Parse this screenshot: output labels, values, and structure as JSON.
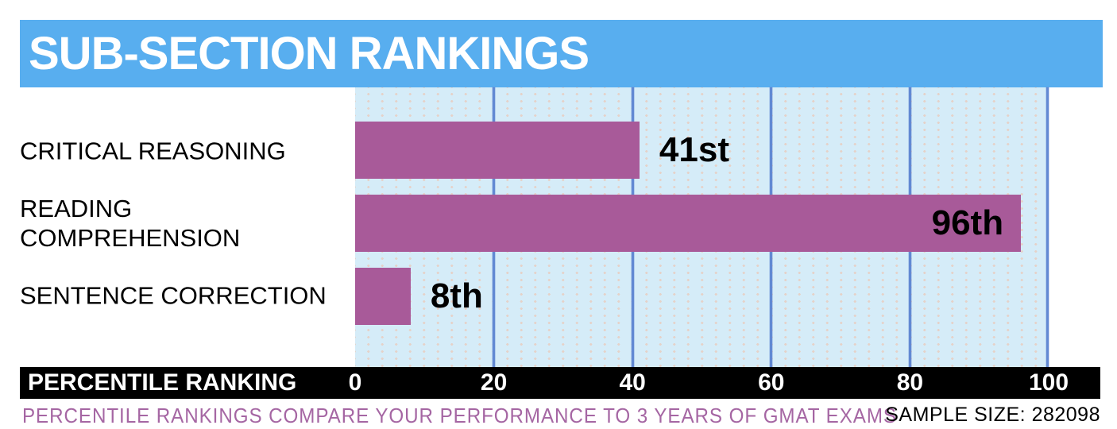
{
  "header": {
    "title": "SUB-SECTION RANKINGS",
    "background_color": "#58aeef"
  },
  "chart_data": {
    "type": "bar",
    "orientation": "horizontal",
    "title": "SUB-SECTION RANKINGS",
    "categories": [
      "CRITICAL REASONING",
      "READING\nCOMPREHENSION",
      "SENTENCE CORRECTION"
    ],
    "values": [
      41,
      96,
      8
    ],
    "display_values": [
      "41st",
      "96th",
      "8th"
    ],
    "xlabel": "PERCENTILE RANKING",
    "ylabel": "",
    "xlim": [
      0,
      100
    ],
    "ticks": [
      0,
      20,
      40,
      60,
      80,
      100
    ],
    "grid": "vertical gridlines every 20",
    "legend": "none",
    "bar_color": "#a85a99",
    "plot_background_color": "#d5ecf8",
    "gridline_color": "#6289d3"
  },
  "axis_bar": {
    "label": "PERCENTILE RANKING"
  },
  "footer": {
    "caption": "PERCENTILE RANKINGS COMPARE YOUR PERFORMANCE TO 3 YEARS OF GMAT EXAMS",
    "caption_color": "#a566a3",
    "sample_size": "SAMPLE SIZE: 282098"
  }
}
